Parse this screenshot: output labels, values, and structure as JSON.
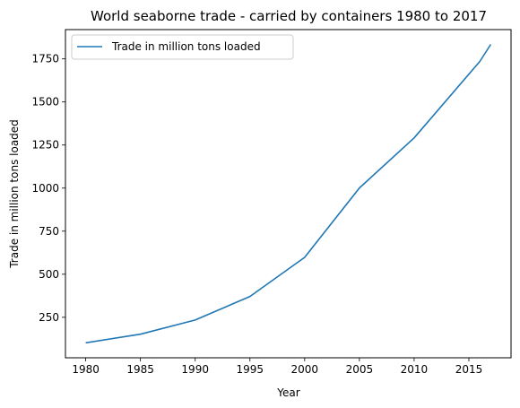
{
  "chart_data": {
    "type": "line",
    "title": "World seaborne trade - carried by containers 1980 to 2017",
    "xlabel": "Year",
    "ylabel": "Trade in million tons loaded",
    "x": [
      1980,
      1985,
      1990,
      1995,
      2000,
      2005,
      2010,
      2016,
      2017
    ],
    "series": [
      {
        "name": "Trade in million tons loaded",
        "values": [
          102,
          152,
          234,
          371,
          598,
          1001,
          1291,
          1735,
          1834
        ],
        "color": "#1f77b4"
      }
    ],
    "xlim": [
      1978.15,
      2018.85
    ],
    "ylim": [
      15,
      1920
    ],
    "xticks": [
      1980,
      1985,
      1990,
      1995,
      2000,
      2005,
      2010,
      2015
    ],
    "yticks": [
      250,
      500,
      750,
      1000,
      1250,
      1500,
      1750
    ],
    "grid": false,
    "legend_position": "top-left"
  }
}
